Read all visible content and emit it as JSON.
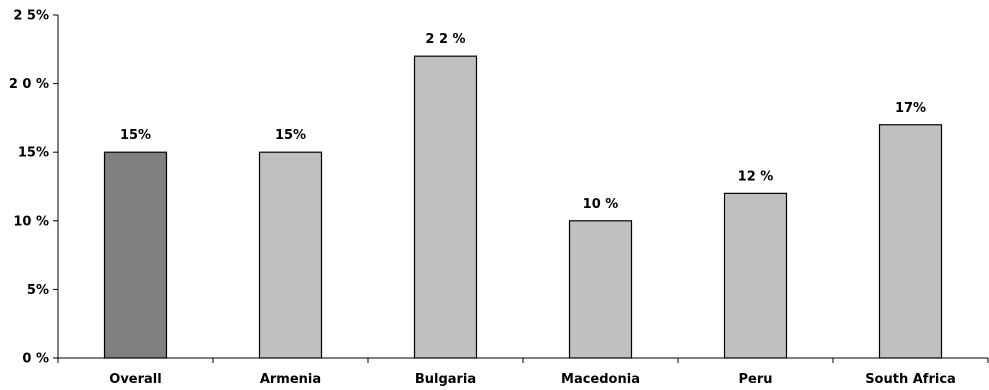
{
  "chart_data": {
    "type": "bar",
    "categories": [
      "Overall",
      "Armenia",
      "Bulgaria",
      "Macedonia",
      "Peru",
      "South Africa"
    ],
    "values": [
      15,
      15,
      22,
      10,
      12,
      17
    ],
    "data_labels": [
      "15%",
      "15%",
      "2 2 %",
      "10 %",
      "12 %",
      "17%"
    ],
    "ylim": [
      0,
      25
    ],
    "yticks": [
      0,
      5,
      10,
      15,
      20,
      25
    ],
    "ytick_labels": [
      "0 %",
      "5%",
      "10 %",
      "15%",
      "2 0 %",
      "2 5%"
    ],
    "grid": false,
    "legend": "none",
    "colors": {
      "highlight": "#808080",
      "default": "#c0c0c0",
      "outline": "#000000"
    },
    "highlight_categories": [
      "Overall"
    ]
  }
}
